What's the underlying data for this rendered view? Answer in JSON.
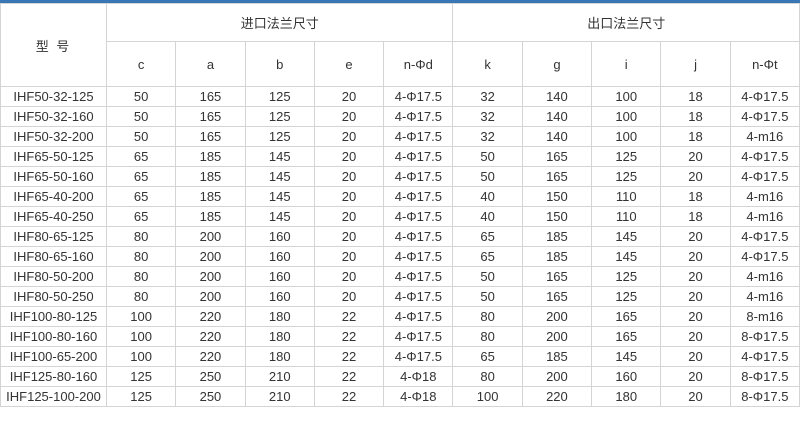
{
  "colors": {
    "accent_bar": "#3876b5",
    "border": "#d4d4d4",
    "text": "#333333"
  },
  "table": {
    "model_header": "型 号",
    "inlet_group_header": "进口法兰尺寸",
    "outlet_group_header": "出口法兰尺寸",
    "sub_headers": [
      "c",
      "a",
      "b",
      "e",
      "n-Φd",
      "k",
      "g",
      "i",
      "j",
      "n-Φt"
    ],
    "rows": [
      [
        "IHF50-32-125",
        "50",
        "165",
        "125",
        "20",
        "4-Φ17.5",
        "32",
        "140",
        "100",
        "18",
        "4-Φ17.5"
      ],
      [
        "IHF50-32-160",
        "50",
        "165",
        "125",
        "20",
        "4-Φ17.5",
        "32",
        "140",
        "100",
        "18",
        "4-Φ17.5"
      ],
      [
        "IHF50-32-200",
        "50",
        "165",
        "125",
        "20",
        "4-Φ17.5",
        "32",
        "140",
        "100",
        "18",
        "4-m16"
      ],
      [
        "IHF65-50-125",
        "65",
        "185",
        "145",
        "20",
        "4-Φ17.5",
        "50",
        "165",
        "125",
        "20",
        "4-Φ17.5"
      ],
      [
        "IHF65-50-160",
        "65",
        "185",
        "145",
        "20",
        "4-Φ17.5",
        "50",
        "165",
        "125",
        "20",
        "4-Φ17.5"
      ],
      [
        "IHF65-40-200",
        "65",
        "185",
        "145",
        "20",
        "4-Φ17.5",
        "40",
        "150",
        "110",
        "18",
        "4-m16"
      ],
      [
        "IHF65-40-250",
        "65",
        "185",
        "145",
        "20",
        "4-Φ17.5",
        "40",
        "150",
        "110",
        "18",
        "4-m16"
      ],
      [
        "IHF80-65-125",
        "80",
        "200",
        "160",
        "20",
        "4-Φ17.5",
        "65",
        "185",
        "145",
        "20",
        "4-Φ17.5"
      ],
      [
        "IHF80-65-160",
        "80",
        "200",
        "160",
        "20",
        "4-Φ17.5",
        "65",
        "185",
        "145",
        "20",
        "4-Φ17.5"
      ],
      [
        "IHF80-50-200",
        "80",
        "200",
        "160",
        "20",
        "4-Φ17.5",
        "50",
        "165",
        "125",
        "20",
        "4-m16"
      ],
      [
        "IHF80-50-250",
        "80",
        "200",
        "160",
        "20",
        "4-Φ17.5",
        "50",
        "165",
        "125",
        "20",
        "4-m16"
      ],
      [
        "IHF100-80-125",
        "100",
        "220",
        "180",
        "22",
        "4-Φ17.5",
        "80",
        "200",
        "165",
        "20",
        "8-m16"
      ],
      [
        "IHF100-80-160",
        "100",
        "220",
        "180",
        "22",
        "4-Φ17.5",
        "80",
        "200",
        "165",
        "20",
        "8-Φ17.5"
      ],
      [
        "IHF100-65-200",
        "100",
        "220",
        "180",
        "22",
        "4-Φ17.5",
        "65",
        "185",
        "145",
        "20",
        "4-Φ17.5"
      ],
      [
        "IHF125-80-160",
        "125",
        "250",
        "210",
        "22",
        "4-Φ18",
        "80",
        "200",
        "160",
        "20",
        "8-Φ17.5"
      ],
      [
        "IHF125-100-200",
        "125",
        "250",
        "210",
        "22",
        "4-Φ18",
        "100",
        "220",
        "180",
        "20",
        "8-Φ17.5"
      ]
    ]
  }
}
